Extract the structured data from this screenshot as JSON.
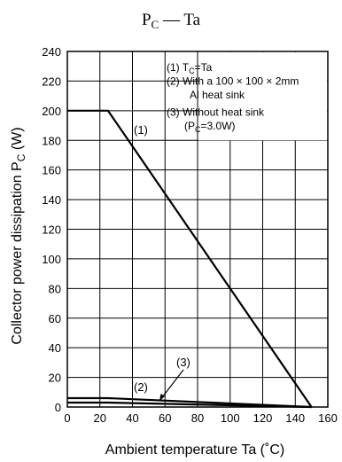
{
  "chart_data": {
    "type": "line",
    "title_main": "P",
    "title_sub": "C",
    "title_rest": " — Ta",
    "xlabel": "Ambient temperature  Ta  (˚C)",
    "ylabel_main": "Collector power dissipation  P",
    "ylabel_sub": "C",
    "ylabel_unit": "  (W)",
    "xlim": [
      0,
      160
    ],
    "ylim": [
      0,
      240
    ],
    "xticks": [
      "0",
      "20",
      "40",
      "60",
      "80",
      "100",
      "120",
      "140",
      "160"
    ],
    "yticks": [
      "0",
      "20",
      "40",
      "60",
      "80",
      "100",
      "120",
      "140",
      "160",
      "180",
      "200",
      "220",
      "240"
    ],
    "grid": true,
    "legend": [
      {
        "label": "(1)",
        "text": "T",
        "sub": "C",
        "rest": "=Ta"
      },
      {
        "label": "(2)",
        "text": "With a 100 × 100 × 2mm"
      },
      {
        "label": "",
        "text": "Al heat sink"
      },
      {
        "label": "(3)",
        "text": "Without heat sink"
      },
      {
        "label": "",
        "text": "(P",
        "sub": "C",
        "rest": "=3.0W)"
      }
    ],
    "series": [
      {
        "name": "(1)",
        "x": [
          0,
          25,
          150
        ],
        "y": [
          200,
          200,
          0
        ]
      },
      {
        "name": "(2)",
        "x": [
          0,
          25,
          150
        ],
        "y": [
          6,
          6,
          0
        ]
      },
      {
        "name": "(3)",
        "x": [
          0,
          25,
          150
        ],
        "y": [
          3,
          3,
          0
        ]
      }
    ]
  }
}
